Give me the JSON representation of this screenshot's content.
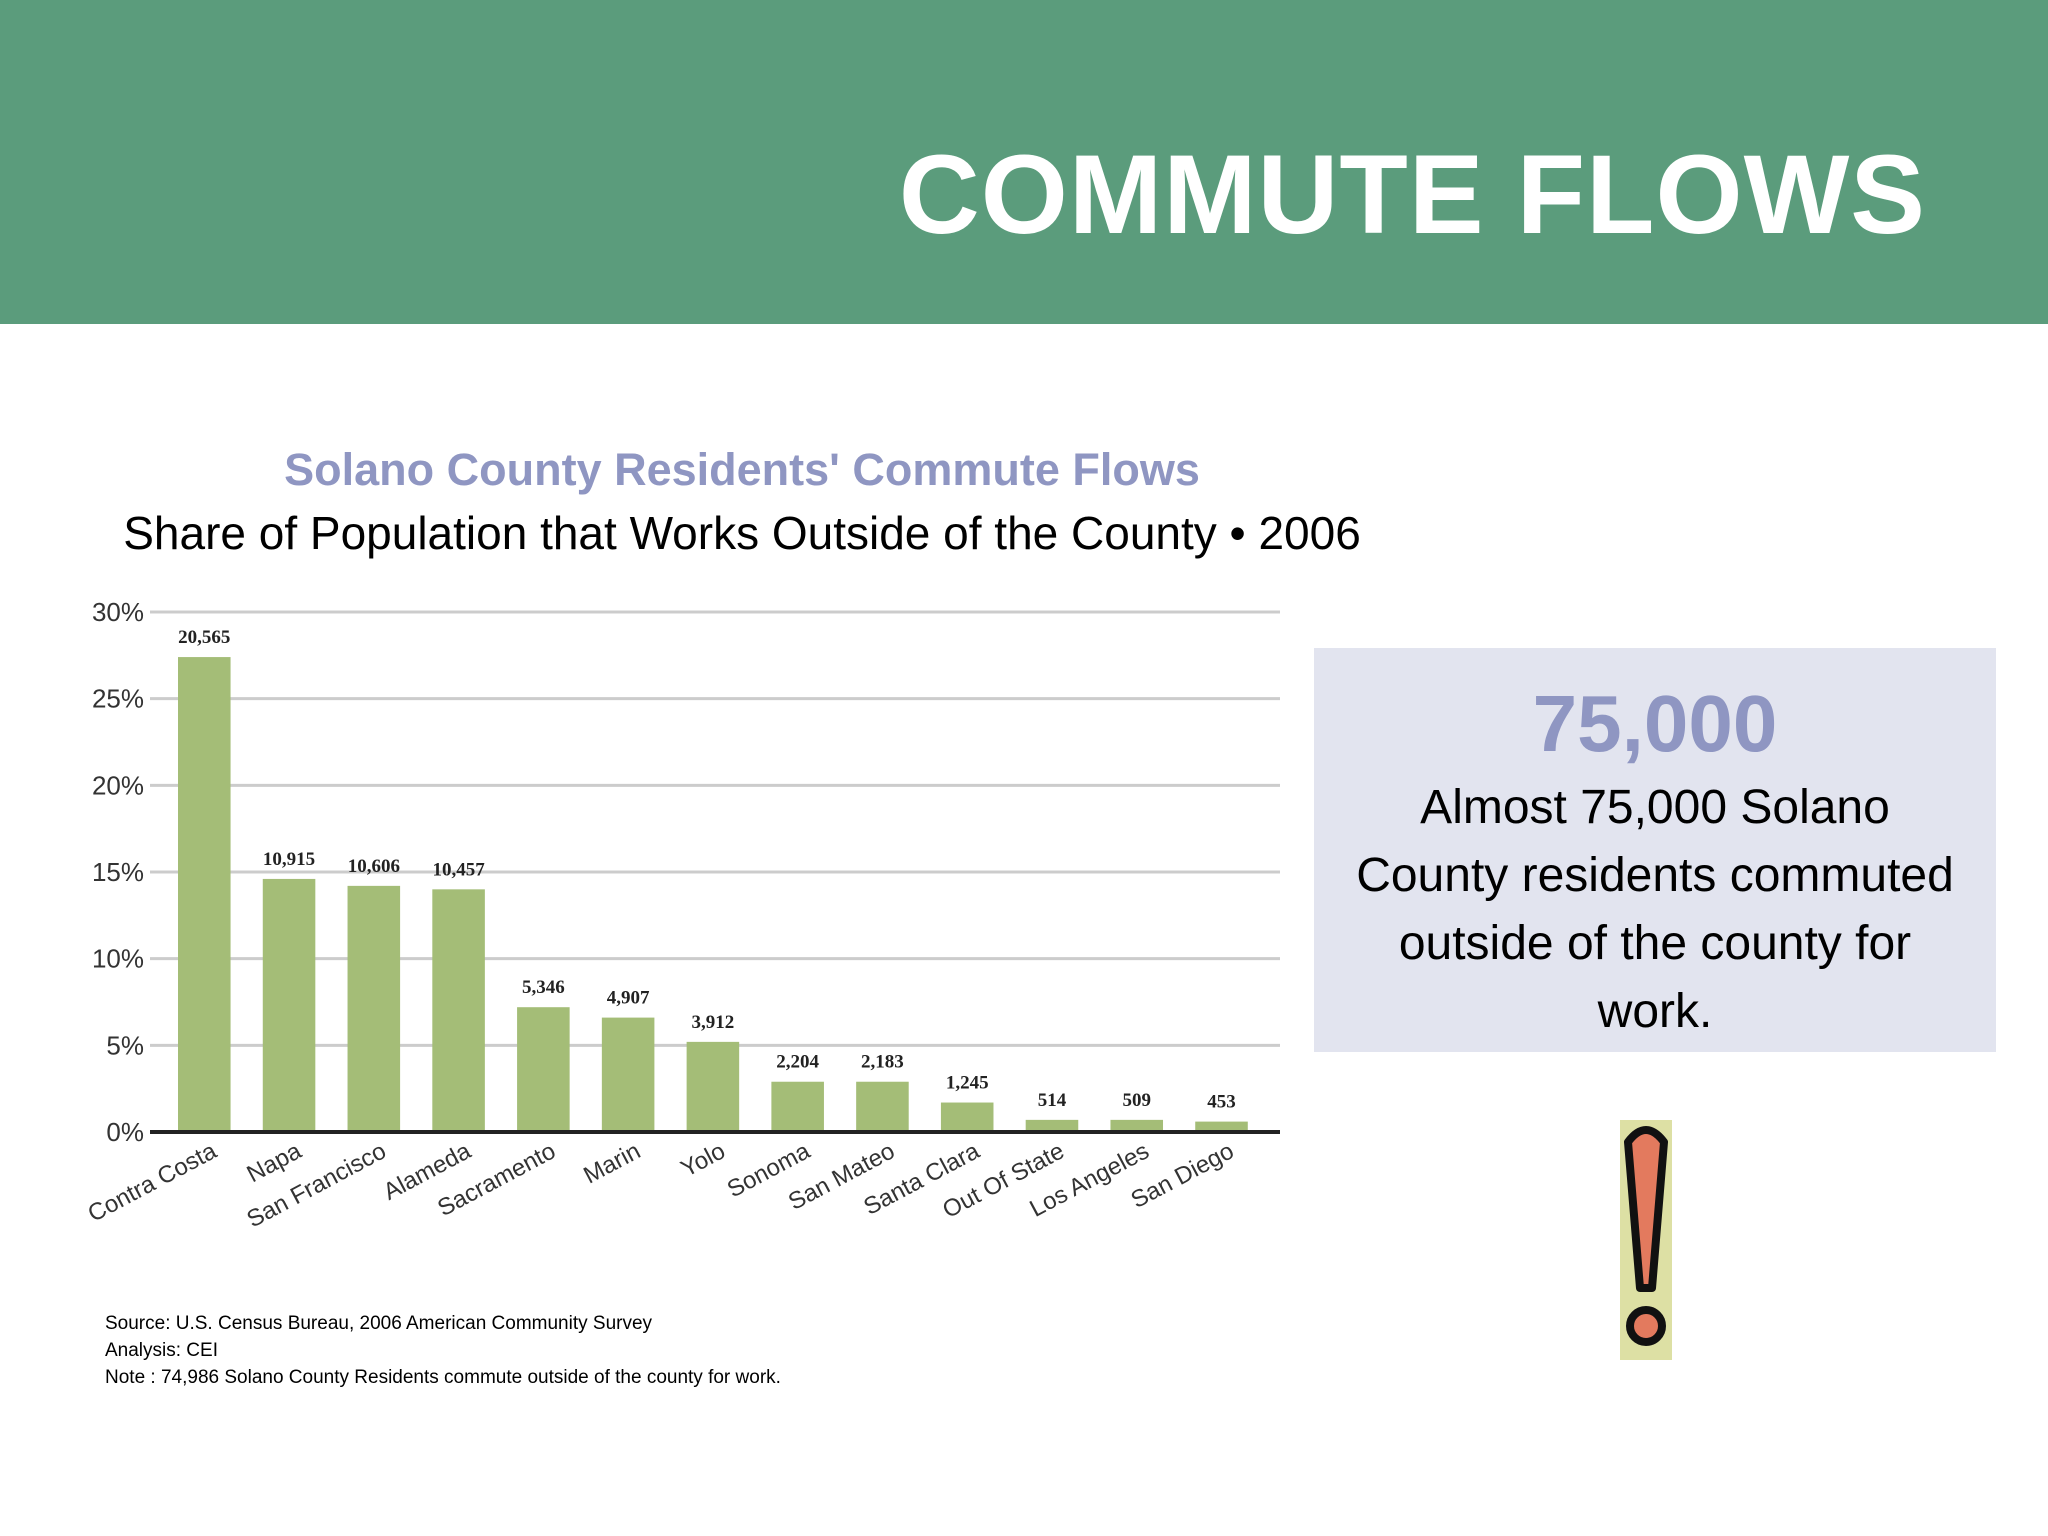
{
  "header": {
    "title": "COMMUTE FLOWS"
  },
  "callout": {
    "value": "75,000",
    "text": "Almost 75,000 Solano County residents commuted outside of the county for work."
  },
  "notes": {
    "source": "Source: U.S. Census Bureau, 2006 American Community Survey",
    "analysis": "Analysis: CEI",
    "note": "Note : 74,986 Solano County Residents commute outside of the county for work."
  },
  "icon": {
    "name": "exclamation-icon",
    "fill": "#dde0a4",
    "stroke": "#111111",
    "accent": "#e37a5e"
  },
  "colors": {
    "bar": "#a4bd77",
    "header": "#5b9c7c",
    "title": "#8f96c2",
    "callout_bg": "#e2e4ef"
  },
  "chart_data": {
    "type": "bar",
    "title": "Solano County Residents' Commute Flows",
    "subtitle": "Share of Population that Works Outside of the County • 2006",
    "xlabel": "",
    "ylabel": "",
    "categories": [
      "Contra Costa",
      "Napa",
      "San Francisco",
      "Alameda",
      "Sacramento",
      "Marin",
      "Yolo",
      "Sonoma",
      "San Mateo",
      "Santa Clara",
      "Out Of State",
      "Los Angeles",
      "San Diego"
    ],
    "values": [
      27.4,
      14.6,
      14.2,
      14.0,
      7.2,
      6.6,
      5.2,
      2.9,
      2.9,
      1.7,
      0.7,
      0.7,
      0.6
    ],
    "data_labels": [
      "20,565",
      "10,915",
      "10,606",
      "10,457",
      "5,346",
      "4,907",
      "3,912",
      "2,204",
      "2,183",
      "1,245",
      "514",
      "509",
      "453"
    ],
    "yticks": [
      0,
      5,
      10,
      15,
      20,
      25,
      30
    ],
    "ytick_labels": [
      "0%",
      "5%",
      "10%",
      "15%",
      "20%",
      "25%",
      "30%"
    ],
    "ylim": [
      0,
      30
    ],
    "grid": true,
    "legend": "none"
  }
}
